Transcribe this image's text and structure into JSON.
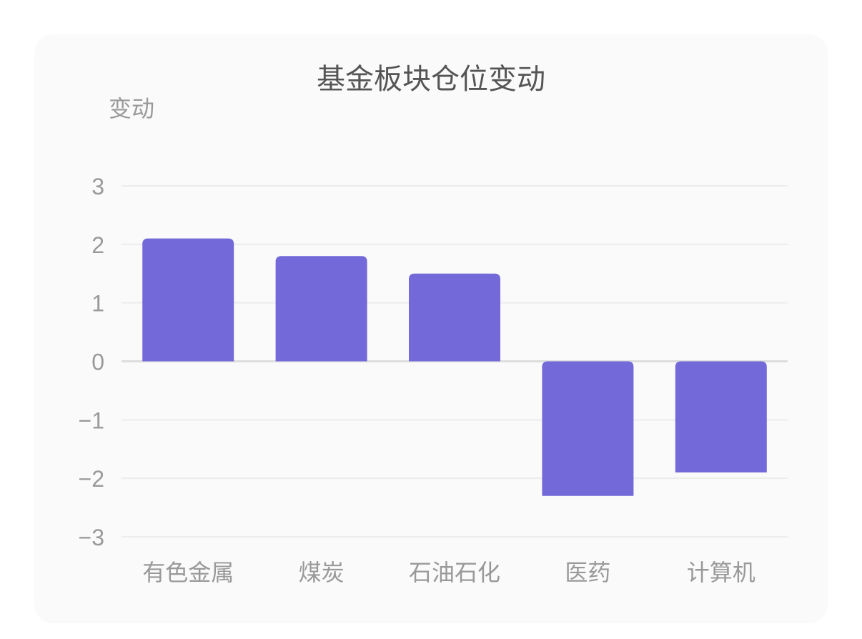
{
  "chart_data": {
    "type": "bar",
    "title": "基金板块仓位变动",
    "ylabel": "变动",
    "xlabel": "",
    "categories": [
      "有色金属",
      "煤炭",
      "石油石化",
      "医药",
      "计算机"
    ],
    "values": [
      2.1,
      1.8,
      1.5,
      -2.3,
      -1.9
    ],
    "ylim": [
      -3,
      3
    ],
    "yticks": [
      3,
      2,
      1,
      0,
      -1,
      -2,
      -3
    ],
    "ytick_labels": [
      "3",
      "2",
      "1",
      "0",
      "−1",
      "−2",
      "−3"
    ],
    "grid": true,
    "legend": "none",
    "colors": {
      "bar": "#7369d9",
      "grid": "#ececec",
      "zero_line": "#dddddd",
      "text": "#999999",
      "title": "#555555"
    }
  }
}
